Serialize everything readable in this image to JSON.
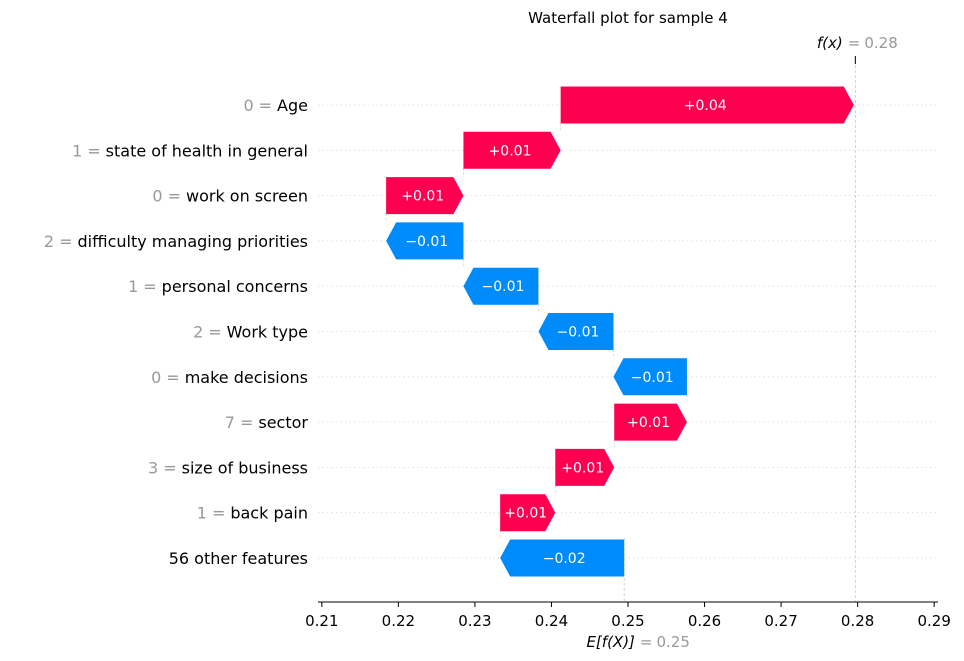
{
  "chart_data": {
    "type": "waterfall",
    "title": "Waterfall plot for sample 4",
    "base_value": 0.2495,
    "base_label": "E[f(X)]",
    "base_label_value": "0.25",
    "final_value": 0.2797,
    "final_label": "f(x)",
    "final_label_value": "0.28",
    "xlim": [
      0.2095,
      0.2905
    ],
    "xticks": [
      "0.21",
      "0.22",
      "0.23",
      "0.24",
      "0.25",
      "0.26",
      "0.27",
      "0.28",
      "0.29"
    ],
    "grid": "dotted horizontal per row",
    "colors": {
      "positive": "#ff0051",
      "negative": "#008bfb"
    },
    "features": [
      {
        "value_text": "0",
        "name": "Age",
        "shap": 0.0383,
        "label": "+0.04"
      },
      {
        "value_text": "1",
        "name": "state of health in general",
        "shap": 0.0127,
        "label": "+0.01"
      },
      {
        "value_text": "0",
        "name": "work on screen",
        "shap": 0.0101,
        "label": "+0.01"
      },
      {
        "value_text": "2",
        "name": "difficulty managing priorities",
        "shap": -0.0101,
        "label": "−0.01"
      },
      {
        "value_text": "1",
        "name": "personal concerns",
        "shap": -0.0098,
        "label": "−0.01"
      },
      {
        "value_text": "2",
        "name": "Work type",
        "shap": -0.0098,
        "label": "−0.01"
      },
      {
        "value_text": "0",
        "name": "make decisions",
        "shap": -0.0096,
        "label": "−0.01"
      },
      {
        "value_text": "7",
        "name": "sector",
        "shap": 0.0095,
        "label": "+0.01"
      },
      {
        "value_text": "3",
        "name": "size of business",
        "shap": 0.0077,
        "label": "+0.01"
      },
      {
        "value_text": "1",
        "name": "back pain",
        "shap": 0.0072,
        "label": "+0.01"
      },
      {
        "value_text": "",
        "name": "56 other features",
        "shap": -0.0162,
        "label": "−0.02"
      }
    ]
  }
}
